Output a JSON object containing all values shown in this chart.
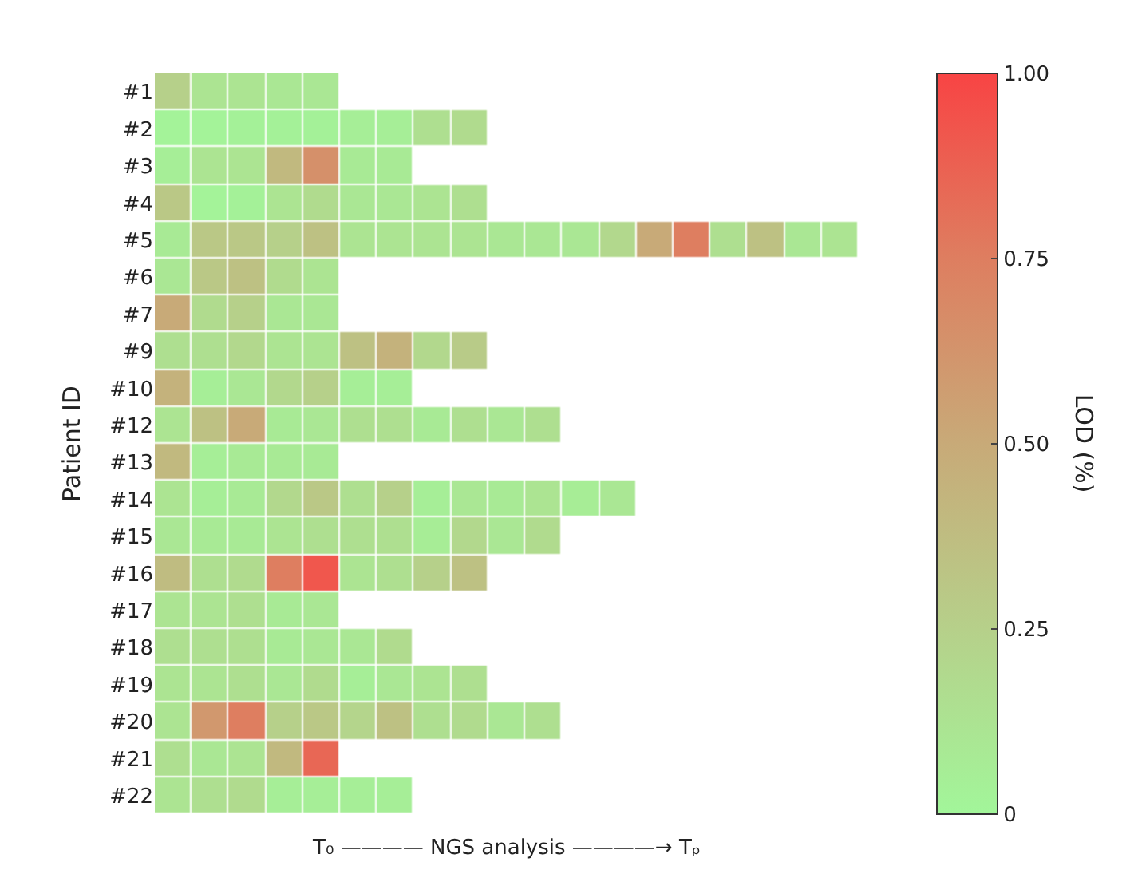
{
  "chart_data": {
    "type": "heatmap",
    "ylabel": "Patient ID",
    "xlabel": "T₀ ———— NGS analysis ————→ Tₚ",
    "clabel": "LOD (%)",
    "categories": [
      null,
      null,
      null,
      null,
      null,
      null,
      null,
      null,
      null,
      null,
      null,
      null,
      null,
      null,
      null,
      null,
      null,
      null,
      null
    ],
    "y_categories": [
      "#1",
      "#2",
      "#3",
      "#4",
      "#5",
      "#6",
      "#7",
      "#9",
      "#10",
      "#12",
      "#13",
      "#14",
      "#15",
      "#16",
      "#17",
      "#18",
      "#19",
      "#20",
      "#21",
      "#22"
    ],
    "colors": [
      "#a2f69a",
      "#b6d08a",
      "#c8aa78",
      "#de7e60",
      "#f84444"
    ],
    "clim": [
      0,
      1
    ],
    "cticks": [
      {
        "value": 0,
        "label": "0"
      },
      {
        "value": 0.25,
        "label": "0.25"
      },
      {
        "value": 0.5,
        "label": "0.50"
      },
      {
        "value": 0.75,
        "label": "0.75"
      },
      {
        "value": 1,
        "label": "1.00"
      }
    ],
    "cells": [
      [
        0.25,
        0.12,
        0.12,
        0.1,
        0.1,
        null,
        null,
        null,
        null,
        null,
        null,
        null,
        null,
        null,
        null,
        null,
        null,
        null,
        null
      ],
      [
        0.02,
        0.02,
        0.03,
        0.03,
        0.03,
        0.05,
        0.05,
        0.15,
        0.18,
        null,
        null,
        null,
        null,
        null,
        null,
        null,
        null,
        null,
        null
      ],
      [
        0.05,
        0.12,
        0.12,
        0.4,
        0.65,
        0.08,
        0.08,
        null,
        null,
        null,
        null,
        null,
        null,
        null,
        null,
        null,
        null,
        null,
        null
      ],
      [
        0.3,
        0.02,
        0.03,
        0.12,
        0.18,
        0.1,
        0.1,
        0.12,
        0.15,
        null,
        null,
        null,
        null,
        null,
        null,
        null,
        null,
        null,
        null
      ],
      [
        0.08,
        0.3,
        0.3,
        0.25,
        0.35,
        0.12,
        0.12,
        0.12,
        0.12,
        0.1,
        0.1,
        0.1,
        0.2,
        0.5,
        0.75,
        0.15,
        0.35,
        0.1,
        0.12
      ],
      [
        0.1,
        0.3,
        0.35,
        0.18,
        0.12,
        null,
        null,
        null,
        null,
        null,
        null,
        null,
        null,
        null,
        null,
        null,
        null,
        null,
        null
      ],
      [
        0.5,
        0.18,
        0.25,
        0.1,
        0.1,
        null,
        null,
        null,
        null,
        null,
        null,
        null,
        null,
        null,
        null,
        null,
        null,
        null,
        null
      ],
      [
        0.15,
        0.15,
        0.2,
        0.12,
        0.12,
        0.35,
        0.45,
        0.2,
        0.28,
        null,
        null,
        null,
        null,
        null,
        null,
        null,
        null,
        null,
        null
      ],
      [
        0.45,
        0.05,
        0.1,
        0.2,
        0.25,
        0.05,
        0.05,
        null,
        null,
        null,
        null,
        null,
        null,
        null,
        null,
        null,
        null,
        null,
        null
      ],
      [
        0.12,
        0.35,
        0.5,
        0.08,
        0.1,
        0.15,
        0.15,
        0.08,
        0.15,
        0.1,
        0.15,
        null,
        null,
        null,
        null,
        null,
        null,
        null,
        null
      ],
      [
        0.4,
        0.05,
        0.08,
        0.08,
        0.08,
        null,
        null,
        null,
        null,
        null,
        null,
        null,
        null,
        null,
        null,
        null,
        null,
        null,
        null
      ],
      [
        0.12,
        0.05,
        0.08,
        0.2,
        0.3,
        0.15,
        0.25,
        0.05,
        0.1,
        0.08,
        0.12,
        0.06,
        0.1,
        null,
        null,
        null,
        null,
        null,
        null
      ],
      [
        0.1,
        0.08,
        0.08,
        0.12,
        0.15,
        0.15,
        0.15,
        0.06,
        0.2,
        0.1,
        0.18,
        null,
        null,
        null,
        null,
        null,
        null,
        null,
        null
      ],
      [
        0.38,
        0.15,
        0.18,
        0.75,
        0.92,
        0.12,
        0.15,
        0.25,
        0.35,
        null,
        null,
        null,
        null,
        null,
        null,
        null,
        null,
        null,
        null
      ],
      [
        0.12,
        0.12,
        0.15,
        0.08,
        0.1,
        null,
        null,
        null,
        null,
        null,
        null,
        null,
        null,
        null,
        null,
        null,
        null,
        null,
        null
      ],
      [
        0.15,
        0.15,
        0.15,
        0.08,
        0.1,
        0.1,
        0.18,
        null,
        null,
        null,
        null,
        null,
        null,
        null,
        null,
        null,
        null,
        null,
        null
      ],
      [
        0.12,
        0.12,
        0.15,
        0.1,
        0.18,
        0.05,
        0.1,
        0.12,
        0.15,
        null,
        null,
        null,
        null,
        null,
        null,
        null,
        null,
        null,
        null
      ],
      [
        0.12,
        0.6,
        0.75,
        0.25,
        0.3,
        0.22,
        0.35,
        0.15,
        0.18,
        0.1,
        0.15,
        null,
        null,
        null,
        null,
        null,
        null,
        null,
        null
      ],
      [
        0.15,
        0.1,
        0.12,
        0.4,
        0.85,
        null,
        null,
        null,
        null,
        null,
        null,
        null,
        null,
        null,
        null,
        null,
        null,
        null,
        null
      ],
      [
        0.12,
        0.15,
        0.18,
        0.05,
        0.05,
        0.05,
        0.05,
        null,
        null,
        null,
        null,
        null,
        null,
        null,
        null,
        null,
        null,
        null,
        null
      ]
    ]
  }
}
